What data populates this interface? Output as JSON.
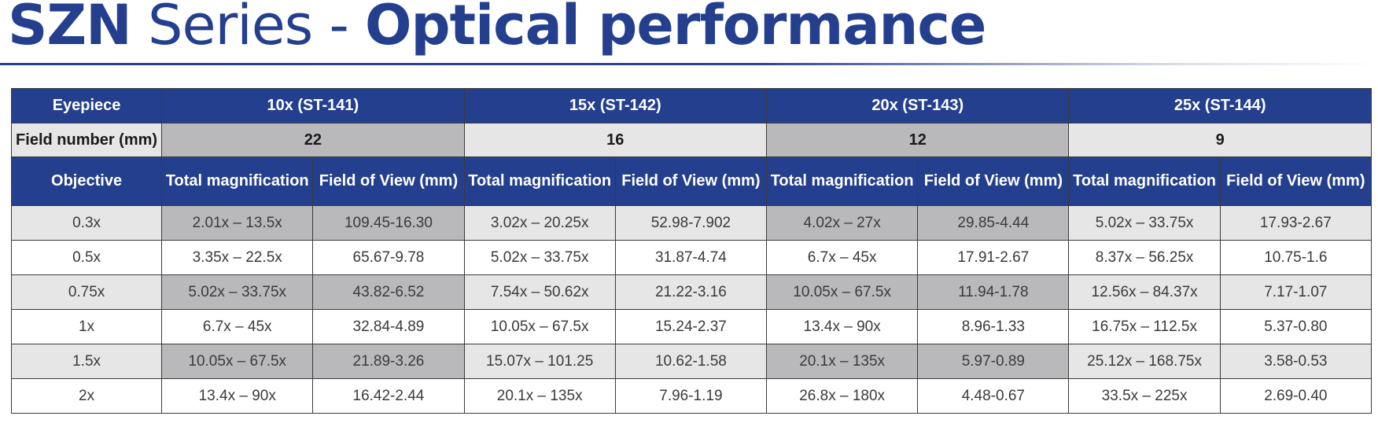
{
  "title": {
    "part1": "SZN",
    "part2": " Series - ",
    "part3": "Optical performance"
  },
  "table": {
    "eyepiece_label": "Eyepiece",
    "eyepieces": [
      "10x (ST-141)",
      "15x (ST-142)",
      "20x (ST-143)",
      "25x (ST-144)"
    ],
    "field_number_label": "Field number (mm)",
    "field_numbers": [
      "22",
      "16",
      "12",
      "9"
    ],
    "objective_label": "Objective",
    "col_total": "Total magnification",
    "col_fov": "Field of View (mm)",
    "rows": [
      {
        "objective": "0.3x",
        "cells": [
          "2.01x – 13.5x",
          "109.45-16.30",
          "3.02x – 20.25x",
          "52.98-7.902",
          "4.02x – 27x",
          "29.85-4.44",
          "5.02x – 33.75x",
          "17.93-2.67"
        ]
      },
      {
        "objective": "0.5x",
        "cells": [
          "3.35x – 22.5x",
          "65.67-9.78",
          "5.02x – 33.75x",
          "31.87-4.74",
          "6.7x – 45x",
          "17.91-2.67",
          "8.37x – 56.25x",
          "10.75-1.6"
        ]
      },
      {
        "objective": "0.75x",
        "cells": [
          "5.02x – 33.75x",
          "43.82-6.52",
          "7.54x – 50.62x",
          "21.22-3.16",
          "10.05x – 67.5x",
          "11.94-1.78",
          "12.56x – 84.37x",
          "7.17-1.07"
        ]
      },
      {
        "objective": "1x",
        "cells": [
          "6.7x – 45x",
          "32.84-4.89",
          "10.05x – 67.5x",
          "15.24-2.37",
          "13.4x – 90x",
          "8.96-1.33",
          "16.75x – 112.5x",
          "5.37-0.80"
        ]
      },
      {
        "objective": "1.5x",
        "cells": [
          "10.05x – 67.5x",
          "21.89-3.26",
          "15.07x – 101.25",
          "10.62-1.58",
          "20.1x – 135x",
          "5.97-0.89",
          "25.12x – 168.75x",
          "3.58-0.53"
        ]
      },
      {
        "objective": "2x",
        "cells": [
          "13.4x – 90x",
          "16.42-2.44",
          "20.1x – 135x",
          "7.96-1.19",
          "26.8x – 180x",
          "4.48-0.67",
          "33.5x – 225x",
          "2.69-0.40"
        ]
      }
    ]
  },
  "colors": {
    "brand_blue": "#243f8e",
    "shade_light": "#e6e6e6",
    "shade_dark": "#b9b9bb"
  }
}
